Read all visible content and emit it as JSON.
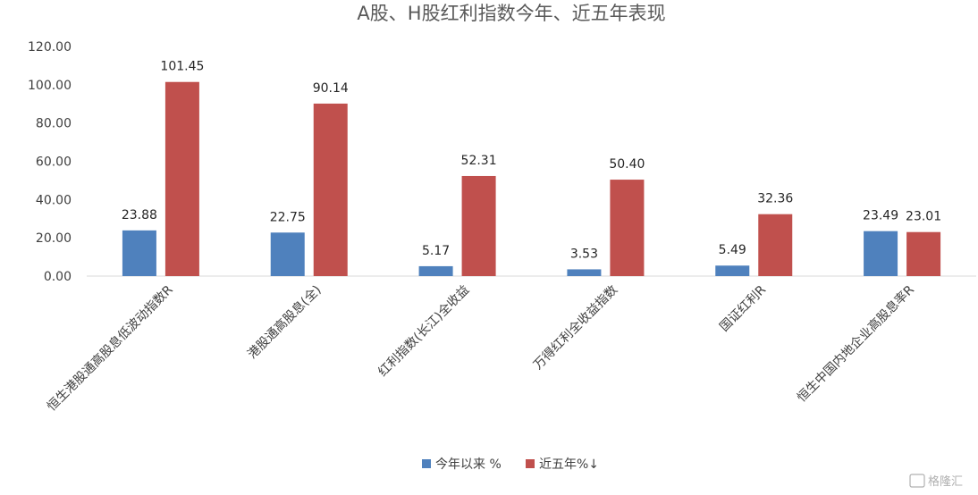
{
  "chart_data": {
    "type": "bar",
    "title": "A股、H股红利指数今年、近五年表现",
    "xlabel": "",
    "ylabel": "",
    "ylim": [
      0,
      120
    ],
    "yticks": [
      "0.00",
      "20.00",
      "40.00",
      "60.00",
      "80.00",
      "100.00",
      "120.00"
    ],
    "grid": false,
    "legend_position": "bottom",
    "categories": [
      "恒生港股通高股息低波动指数R",
      "港股通高股息(全)",
      "红利指数(长江)全收益",
      "万得红利全收益指数",
      "国证红利R",
      "恒生中国内地企业高股息率R"
    ],
    "series": [
      {
        "name": "今年以来 %",
        "color": "#4f81bd",
        "values": [
          23.88,
          22.75,
          5.17,
          3.53,
          5.49,
          23.49
        ]
      },
      {
        "name": "近五年%↓",
        "color": "#c0504d",
        "values": [
          101.45,
          90.14,
          52.31,
          50.4,
          32.36,
          23.01
        ]
      }
    ]
  },
  "watermark": "格隆汇"
}
